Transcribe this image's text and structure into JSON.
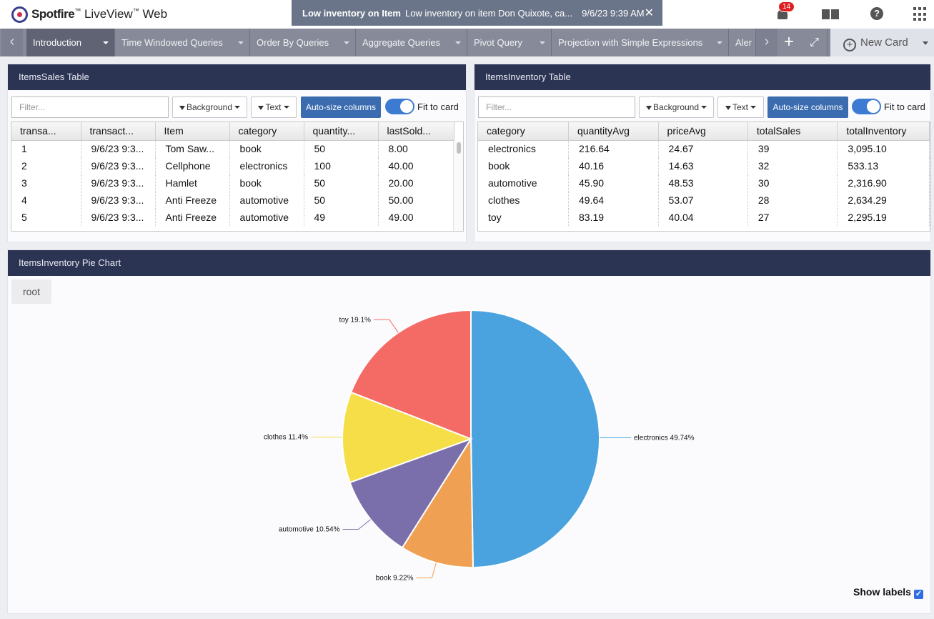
{
  "app": {
    "brand": "Spotfire",
    "product": "LiveView",
    "tm": "™",
    "suffix": "Web"
  },
  "notification": {
    "title": "Low inventory on Item",
    "message": "Low inventory on item Don Quixote, ca...",
    "time": "9/6/23 9:39 AM",
    "close": "✕"
  },
  "header": {
    "badge_count": "14"
  },
  "tabs": [
    {
      "label": "Introduction"
    },
    {
      "label": "Time Windowed Queries"
    },
    {
      "label": "Order By Queries"
    },
    {
      "label": "Aggregate Queries"
    },
    {
      "label": "Pivot Query"
    },
    {
      "label": "Projection with Simple Expressions"
    },
    {
      "label": "Aler"
    }
  ],
  "new_card_label": "New Card",
  "sales_card": {
    "title": "ItemsSales Table",
    "filter_placeholder": "Filter...",
    "background_label": "Background",
    "text_label": "Text",
    "autosize_label": "Auto-size columns",
    "fit_label": "Fit to card",
    "columns": [
      "transa...",
      "transact...",
      "Item",
      "category",
      "quantity...",
      "lastSold..."
    ],
    "rows": [
      [
        "1",
        "9/6/23 9:3...",
        "Tom Saw...",
        "book",
        "50",
        "8.00"
      ],
      [
        "2",
        "9/6/23 9:3...",
        "Cellphone",
        "electronics",
        "100",
        "40.00"
      ],
      [
        "3",
        "9/6/23 9:3...",
        "Hamlet",
        "book",
        "50",
        "20.00"
      ],
      [
        "4",
        "9/6/23 9:3...",
        "Anti Freeze",
        "automotive",
        "50",
        "50.00"
      ],
      [
        "5",
        "9/6/23 9:3...",
        "Anti Freeze",
        "automotive",
        "49",
        "49.00"
      ]
    ]
  },
  "inventory_card": {
    "title": "ItemsInventory Table",
    "filter_placeholder": "Filter...",
    "background_label": "Background",
    "text_label": "Text",
    "autosize_label": "Auto-size columns",
    "fit_label": "Fit to card",
    "columns": [
      "category",
      "quantityAvg",
      "priceAvg",
      "totalSales",
      "totalInventory"
    ],
    "rows": [
      [
        "electronics",
        "216.64",
        "24.67",
        "39",
        "3,095.10"
      ],
      [
        "book",
        "40.16",
        "14.63",
        "32",
        "533.13"
      ],
      [
        "automotive",
        "45.90",
        "48.53",
        "30",
        "2,316.90"
      ],
      [
        "clothes",
        "49.64",
        "53.07",
        "28",
        "2,634.29"
      ],
      [
        "toy",
        "83.19",
        "40.04",
        "27",
        "2,295.19"
      ]
    ]
  },
  "pie_card": {
    "title": "ItemsInventory Pie Chart",
    "root_label": "root",
    "show_labels": "Show labels"
  },
  "chart_data": {
    "type": "pie",
    "categories": [
      "electronics",
      "book",
      "automotive",
      "clothes",
      "toy"
    ],
    "values": [
      49.74,
      9.22,
      10.54,
      11.4,
      19.1
    ],
    "labels": [
      "electronics 49.74%",
      "book 9.22%",
      "automotive 10.54%",
      "clothes 11.4%",
      "toy 19.1%"
    ],
    "colors": [
      "#4aa3df",
      "#f0a052",
      "#7a6eab",
      "#f5de47",
      "#f46b66"
    ]
  }
}
